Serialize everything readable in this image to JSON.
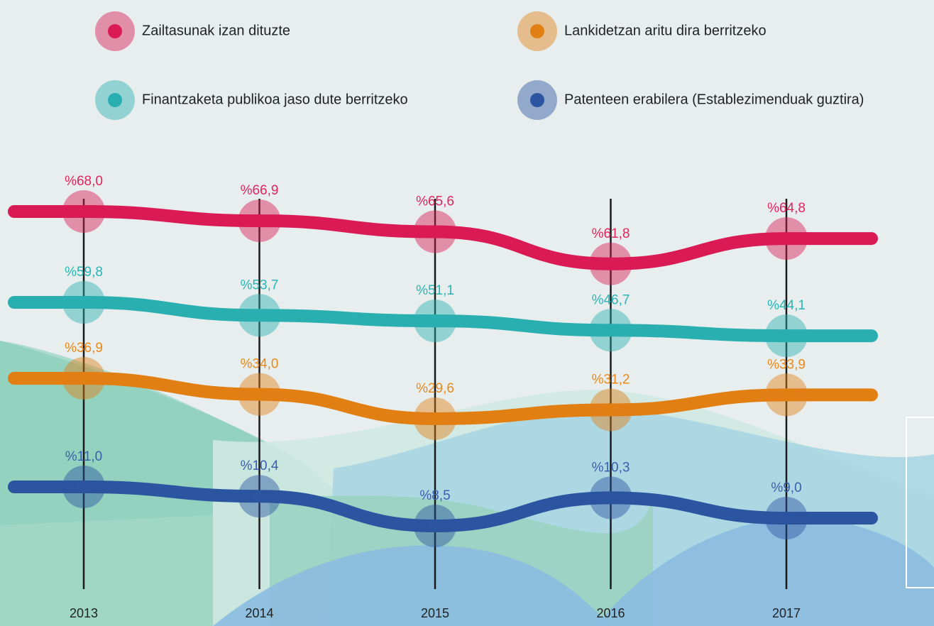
{
  "chart_data": {
    "type": "line",
    "categories": [
      "2013",
      "2014",
      "2015",
      "2016",
      "2017"
    ],
    "series": [
      {
        "name": "Zailtasunak izan dituzte",
        "color": "#d91a55",
        "values": [
          68.0,
          66.9,
          65.6,
          61.8,
          64.8
        ],
        "value_labels": [
          "%68,0",
          "%66,9",
          "%65,6",
          "%61,8",
          "%64,8"
        ]
      },
      {
        "name": "Lankidetzan aritu dira berritzeko",
        "color": "#e27f13",
        "values": [
          36.9,
          34.0,
          29.6,
          31.2,
          33.9
        ],
        "value_labels": [
          "%36,9",
          "%34,0",
          "%29,6",
          "%31,2",
          "%33,9"
        ]
      },
      {
        "name": "Finantzaketa publikoa jaso dute berritzeko",
        "color": "#2aafb1",
        "values": [
          59.8,
          53.7,
          51.1,
          46.7,
          44.1
        ],
        "value_labels": [
          "%59,8",
          "%53,7",
          "%51,1",
          "%46,7",
          "%44,1"
        ]
      },
      {
        "name": "Patenteen erabilera (Establezimenduak guztira)",
        "color": "#2b55a0",
        "values": [
          11.0,
          10.4,
          8.5,
          10.3,
          9.0
        ],
        "value_labels": [
          "%11,0",
          "%10,4",
          "%8,5",
          "%10,3",
          "%9,0"
        ]
      }
    ]
  }
}
